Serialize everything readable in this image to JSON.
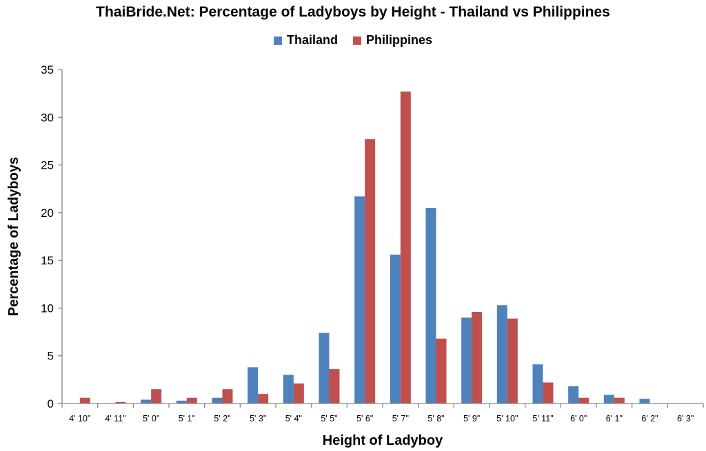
{
  "chart_data": {
    "type": "bar",
    "title": "ThaiBride.Net: Percentage of Ladyboys by Height - Thailand vs Philippines",
    "xlabel": "Height of Ladyboy",
    "ylabel": "Percentage of Ladyboys",
    "ylim": [
      0,
      35
    ],
    "yticks": [
      0,
      5,
      10,
      15,
      20,
      25,
      30,
      35
    ],
    "grid": false,
    "legend": "top-center",
    "categories": [
      "4' 10\"",
      "4' 11\"",
      "5' 0\"",
      "5' 1\"",
      "5' 2\"",
      "5' 3\"",
      "5' 4\"",
      "5' 5\"",
      "5' 6\"",
      "5' 7\"",
      "5' 8\"",
      "5' 9\"",
      "5' 10\"",
      "5' 11\"",
      "6' 0\"",
      "6' 1\"",
      "6' 2\"",
      "6' 3\""
    ],
    "series": [
      {
        "name": "Thailand",
        "color": "#4F81BD",
        "values": [
          0,
          0,
          0.4,
          0.3,
          0.6,
          3.8,
          3.0,
          7.4,
          21.7,
          15.6,
          20.5,
          9.0,
          10.3,
          4.1,
          1.8,
          0.9,
          0.5,
          0
        ]
      },
      {
        "name": "Philippines",
        "color": "#C0504D",
        "values": [
          0.6,
          0.15,
          1.5,
          0.6,
          1.5,
          1.0,
          2.1,
          3.6,
          27.7,
          32.7,
          6.8,
          9.6,
          8.9,
          2.2,
          0.6,
          0.6,
          0,
          0
        ]
      }
    ]
  }
}
